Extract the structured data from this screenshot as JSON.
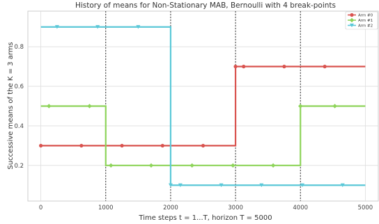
{
  "chart_data": {
    "type": "line",
    "title": "History of means for Non-Stationary MAB, Bernoulli with 4 break-points",
    "xlabel": "Time steps t = 1...T, horizon T = 5000",
    "ylabel": "Successive means of the K = 3 arms",
    "xlim": [
      -200,
      5200
    ],
    "ylim": [
      0.02,
      0.98
    ],
    "x_ticks": [
      "0",
      "1000",
      "2000",
      "3000",
      "4000",
      "5000"
    ],
    "y_ticks": [
      "0.2",
      "0.4",
      "0.6",
      "0.8"
    ],
    "x_tick_values": [
      0,
      1000,
      2000,
      3000,
      4000,
      5000
    ],
    "y_tick_values": [
      0.2,
      0.4,
      0.6,
      0.8
    ],
    "grid": true,
    "legend_position": "top-right",
    "break_points": [
      1000,
      2000,
      3000,
      4000
    ],
    "series": [
      {
        "name": "Arm #0",
        "color": "#d9534f",
        "marker": "circle",
        "segments": [
          {
            "x0": 0,
            "x1": 3000,
            "y": 0.3
          },
          {
            "x0": 3000,
            "x1": 5000,
            "y": 0.7
          }
        ],
        "marker_x": [
          0,
          625,
          1250,
          1875,
          2500,
          3000,
          3125,
          3750,
          4375
        ]
      },
      {
        "name": "Arm #1",
        "color": "#8ed45a",
        "marker": "diamond",
        "segments": [
          {
            "x0": 0,
            "x1": 1000,
            "y": 0.5
          },
          {
            "x0": 1000,
            "x1": 4000,
            "y": 0.2
          },
          {
            "x0": 4000,
            "x1": 5000,
            "y": 0.5
          }
        ],
        "marker_x": [
          125,
          750,
          1080,
          1700,
          2330,
          2960,
          3580,
          4000,
          4530
        ]
      },
      {
        "name": "Arm #2",
        "color": "#5bc8d8",
        "marker": "triangle-down",
        "segments": [
          {
            "x0": 0,
            "x1": 2000,
            "y": 0.9
          },
          {
            "x0": 2000,
            "x1": 5000,
            "y": 0.1
          }
        ],
        "marker_x": [
          250,
          875,
          1500,
          2000,
          2150,
          2780,
          3400,
          4030,
          4650
        ]
      }
    ]
  }
}
